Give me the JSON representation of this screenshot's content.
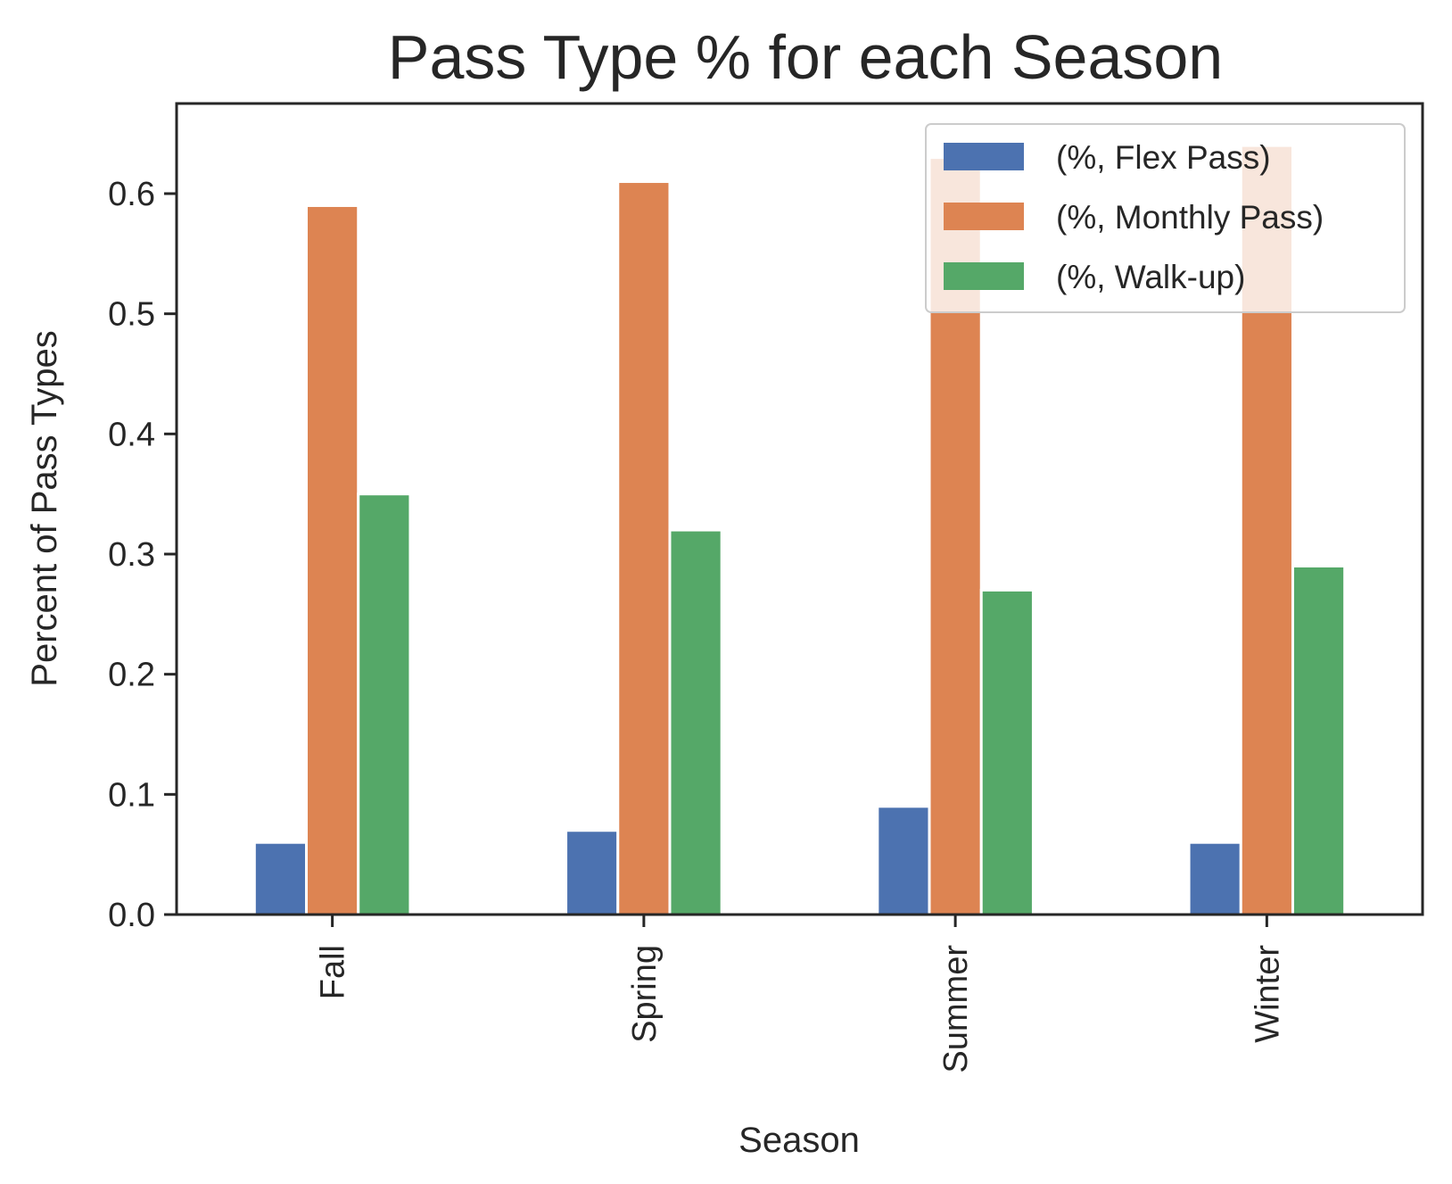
{
  "chart_data": {
    "type": "bar",
    "title": "Pass Type % for each Season",
    "xlabel": "Season",
    "ylabel": "Percent of Pass Types",
    "categories": [
      "Fall",
      "Spring",
      "Summer",
      "Winter"
    ],
    "ylim": [
      0,
      0.675
    ],
    "yticks": [
      0.0,
      0.1,
      0.2,
      0.3,
      0.4,
      0.5,
      0.6
    ],
    "ytick_labels": [
      "0.0",
      "0.1",
      "0.2",
      "0.3",
      "0.4",
      "0.5",
      "0.6"
    ],
    "series": [
      {
        "name": "(%, Flex Pass)",
        "color": "#4c72b0",
        "values": [
          0.06,
          0.07,
          0.09,
          0.06
        ]
      },
      {
        "name": "(%, Monthly Pass)",
        "color": "#dd8452",
        "values": [
          0.59,
          0.61,
          0.63,
          0.64
        ]
      },
      {
        "name": "(%, Walk-up)",
        "color": "#55a868",
        "values": [
          0.35,
          0.32,
          0.27,
          0.29
        ]
      }
    ],
    "legend_position": "top-right",
    "grid": false,
    "x_tick_rotation": "vertical"
  }
}
